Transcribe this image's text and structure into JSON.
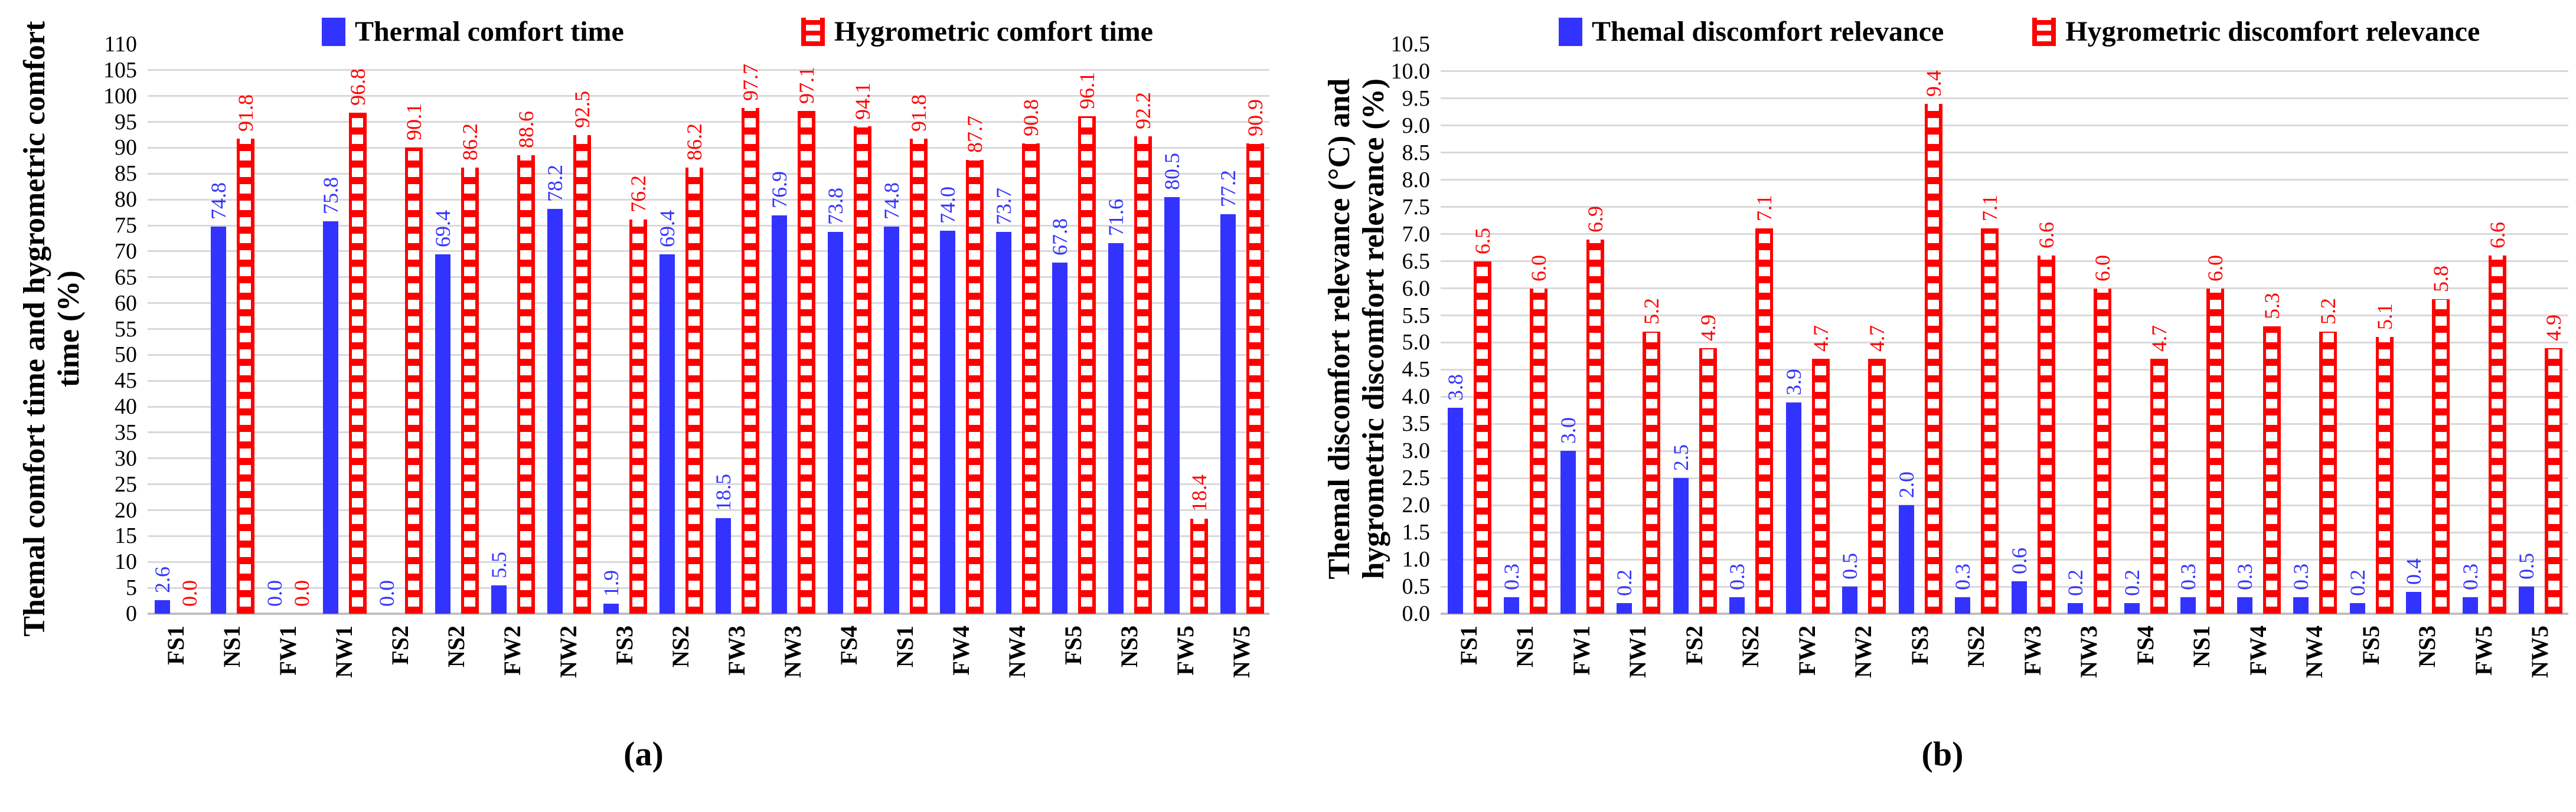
{
  "colors": {
    "bar_blue": "#3333FF",
    "bar_red": "#FF0000",
    "gridline": "#D9D9D9",
    "baseline": "#BFBFBF",
    "text": "#000000"
  },
  "chart_data": [
    {
      "type": "bar",
      "panel": "a",
      "caption": "(a)",
      "title": "",
      "xlabel": "",
      "ylabel": "Themal comfort time and hygrometric comfort time (%)",
      "ylabel_lines": [
        "Themal comfort time and hygrometric comfort",
        "time (%)"
      ],
      "ylim": [
        0,
        110
      ],
      "ytick_step": 5,
      "ytick_format": "integer",
      "grid": true,
      "legend_position": "top",
      "value_labels": true,
      "categories": [
        "FS1",
        "NS1",
        "FW1",
        "NW1",
        "FS2",
        "NS2",
        "FW2",
        "NW2",
        "FS3",
        "NS2",
        "FW3",
        "NW3",
        "FS4",
        "NS1",
        "FW4",
        "NW4",
        "FS5",
        "NS3",
        "FW5",
        "NW5"
      ],
      "series": [
        {
          "name": "Thermal comfort time",
          "color": "#3333FF",
          "pattern": "solid",
          "values": [
            2.6,
            74.8,
            0.0,
            75.8,
            0.0,
            69.4,
            5.5,
            78.2,
            1.9,
            69.4,
            18.5,
            76.9,
            73.8,
            74.8,
            74.0,
            73.7,
            67.8,
            71.6,
            80.5,
            77.2
          ]
        },
        {
          "name": "Hygrometric comfort time",
          "color": "#FF0000",
          "pattern": "checker",
          "values": [
            0.0,
            91.8,
            0.0,
            96.8,
            90.1,
            86.2,
            88.6,
            92.5,
            76.2,
            86.2,
            97.7,
            97.1,
            94.1,
            91.8,
            87.7,
            90.8,
            96.1,
            92.2,
            18.4,
            90.9
          ]
        }
      ]
    },
    {
      "type": "bar",
      "panel": "b",
      "caption": "(b)",
      "title": "",
      "xlabel": "",
      "ylabel": "Themal discomfort relevance (°C) and hygrometric discomfort relevance (%)",
      "ylabel_lines": [
        "Themal discomfort relevance (°C) and",
        "hygrometric discomfort relevance (%)"
      ],
      "ylim": [
        0,
        10.5
      ],
      "ytick_step": 0.5,
      "ytick_format": "one_decimal",
      "grid": true,
      "legend_position": "top",
      "value_labels": true,
      "categories": [
        "FS1",
        "NS1",
        "FW1",
        "NW1",
        "FS2",
        "NS2",
        "FW2",
        "NW2",
        "FS3",
        "NS2",
        "FW3",
        "NW3",
        "FS4",
        "NS1",
        "FW4",
        "NW4",
        "FS5",
        "NS3",
        "FW5",
        "NW5"
      ],
      "series": [
        {
          "name": "Themal discomfort relevance",
          "color": "#3333FF",
          "pattern": "solid",
          "values": [
            3.8,
            0.3,
            3.0,
            0.2,
            2.5,
            0.3,
            3.9,
            0.5,
            2.0,
            0.3,
            0.6,
            0.2,
            0.2,
            0.3,
            0.3,
            0.3,
            0.2,
            0.4,
            0.3,
            0.5
          ]
        },
        {
          "name": "Hygrometric discomfort relevance",
          "color": "#FF0000",
          "pattern": "checker",
          "values": [
            6.5,
            6.0,
            6.9,
            5.2,
            4.9,
            7.1,
            4.7,
            4.7,
            9.4,
            7.1,
            6.6,
            6.0,
            4.7,
            6.0,
            5.3,
            5.2,
            5.1,
            5.8,
            6.6,
            4.9
          ]
        }
      ]
    }
  ]
}
